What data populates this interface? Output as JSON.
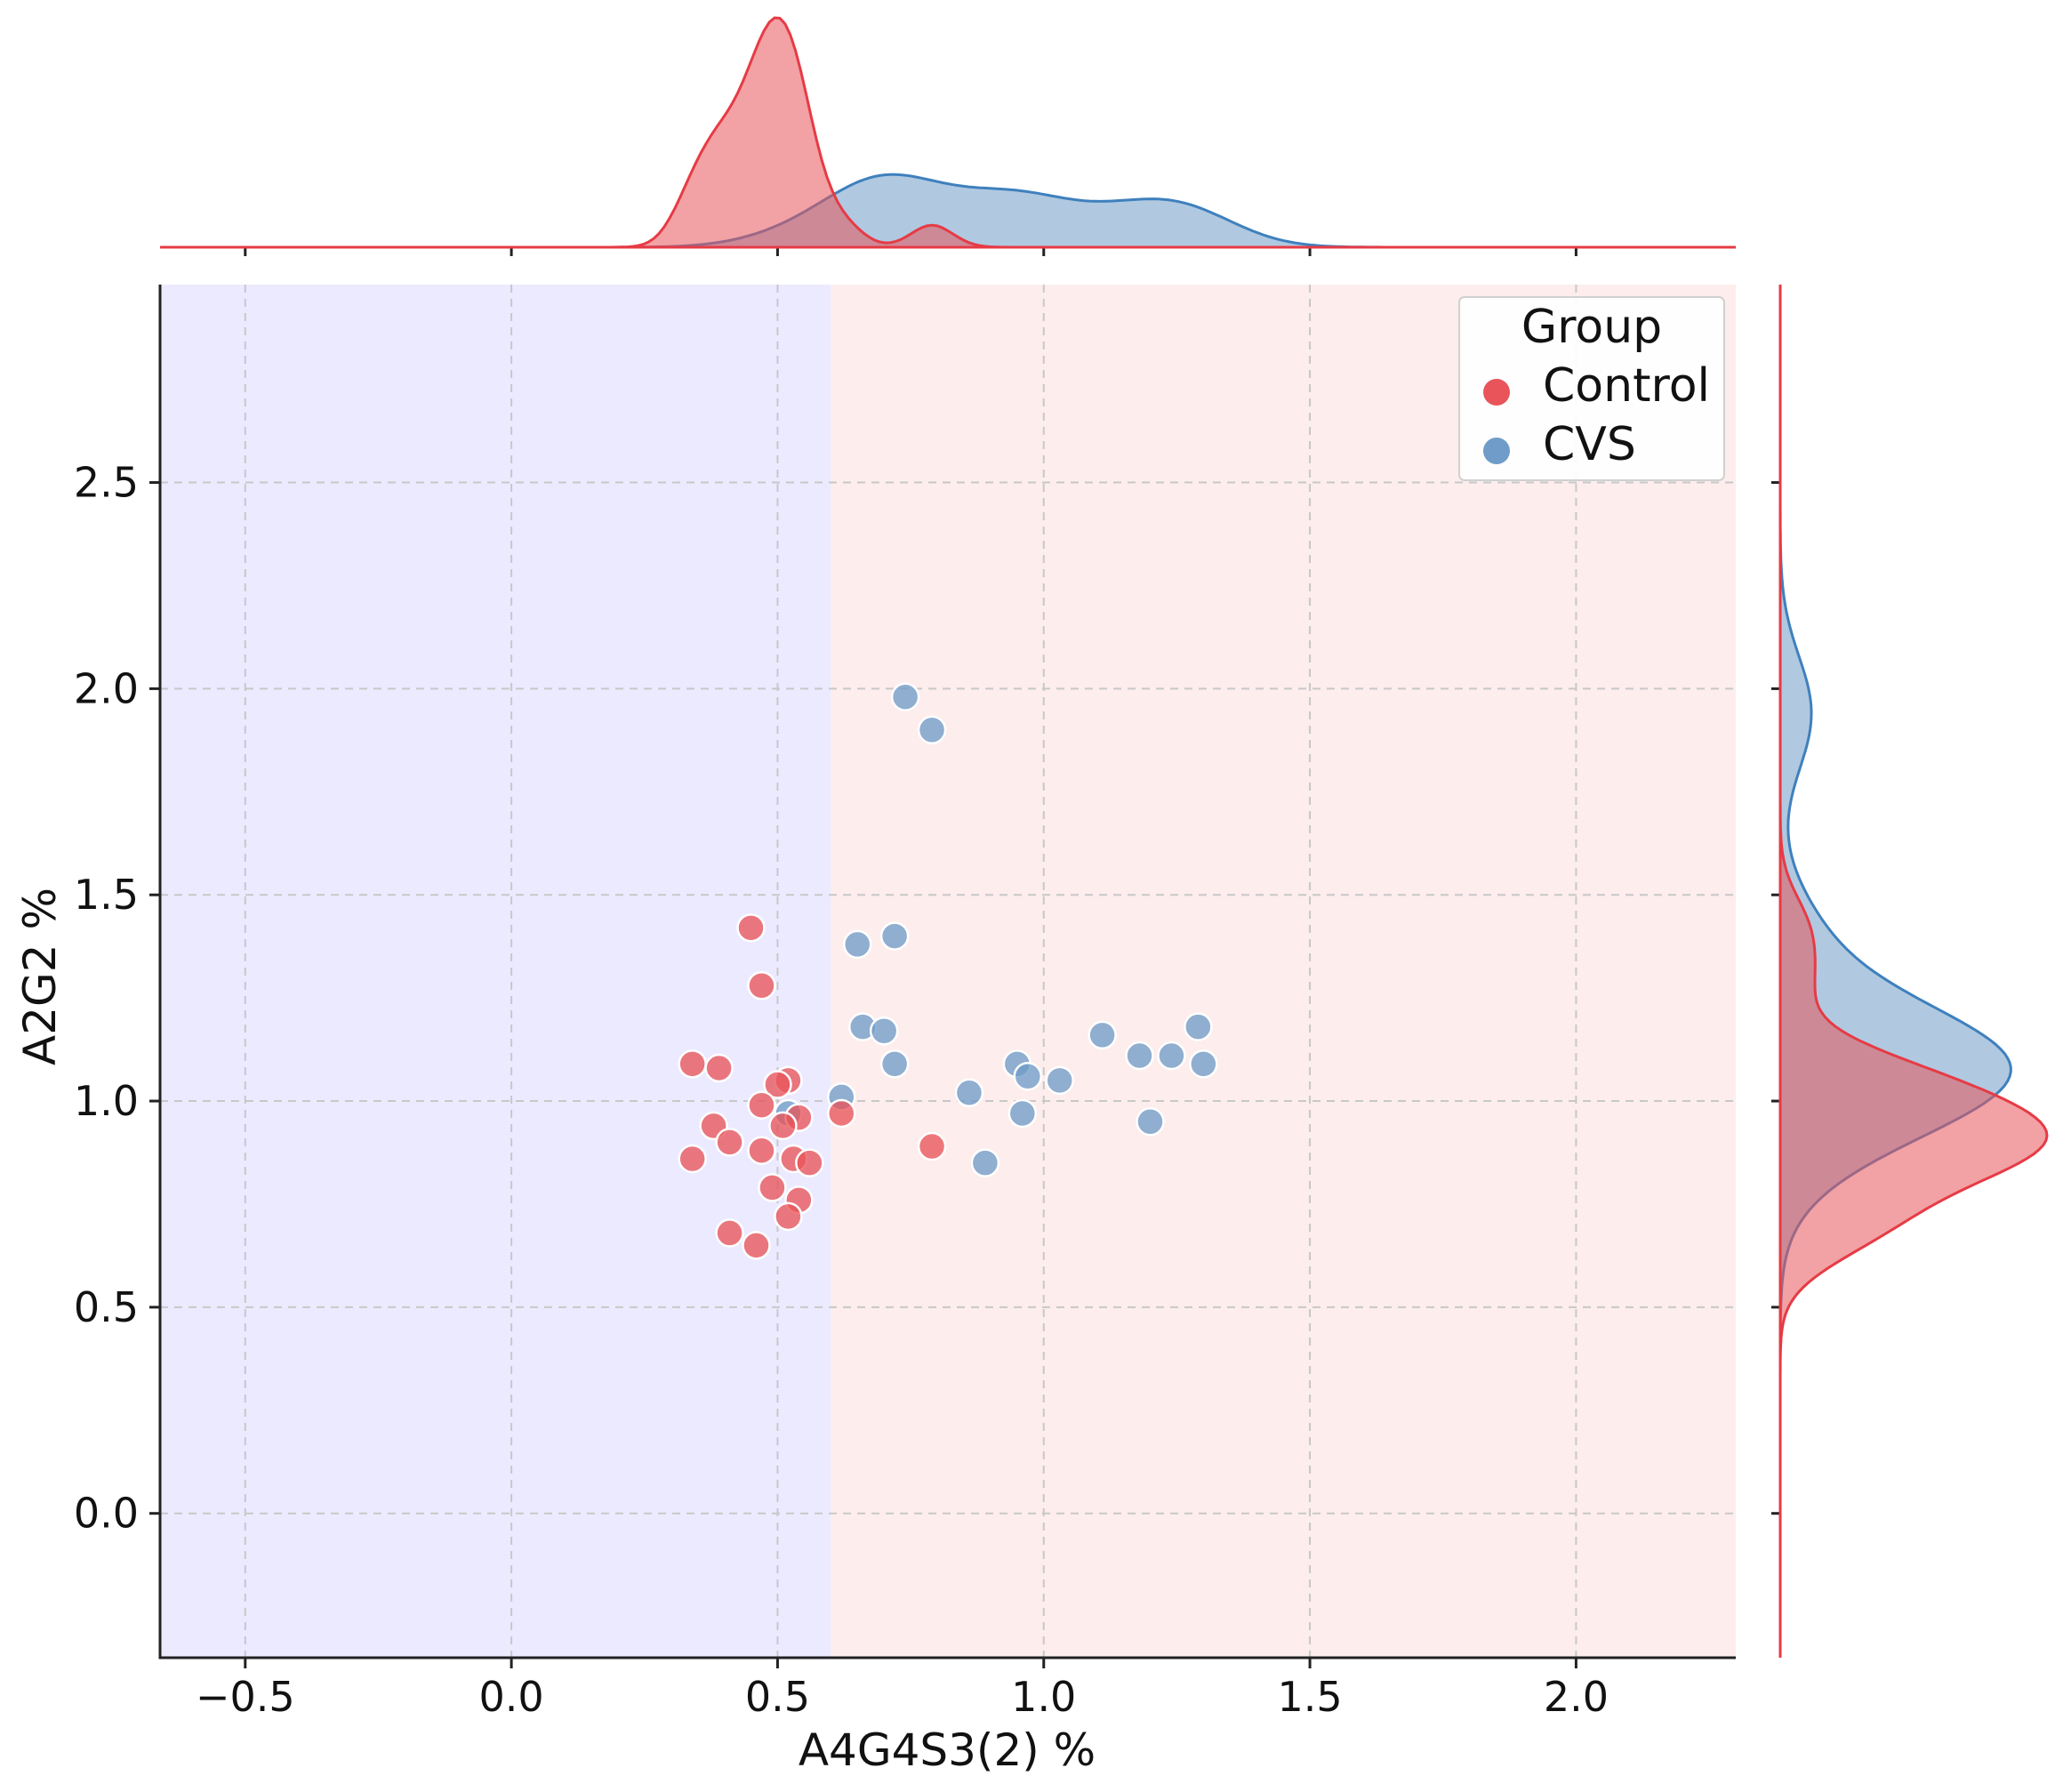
{
  "chart_data": {
    "type": "scatter",
    "title": "",
    "xlabel": "A4G4S3(2) %",
    "ylabel": "A2G2 %",
    "xlim": [
      -0.66,
      2.3
    ],
    "ylim": [
      -0.35,
      2.98
    ],
    "xticks": [
      -0.5,
      0.0,
      0.5,
      1.0,
      1.5,
      2.0
    ],
    "yticks": [
      0.0,
      0.5,
      1.0,
      1.5,
      2.0,
      2.5
    ],
    "xtick_labels": [
      "−0.5",
      "0.0",
      "0.5",
      "1.0",
      "1.5",
      "2.0"
    ],
    "ytick_labels": [
      "0.0",
      "0.5",
      "1.0",
      "1.5",
      "2.0",
      "2.5"
    ],
    "grid": true,
    "background_regions": [
      {
        "x_from": -0.66,
        "x_to": 0.6,
        "color": "#eceaff"
      },
      {
        "x_from": 0.6,
        "x_to": 2.3,
        "color": "#fdeded"
      }
    ],
    "legend": {
      "title": "Group",
      "position": "top-right"
    },
    "series": [
      {
        "name": "Control",
        "color": "#e8545a",
        "kde_color": "#e63b45",
        "points": [
          [
            0.45,
            1.42
          ],
          [
            0.47,
            1.28
          ],
          [
            0.34,
            1.09
          ],
          [
            0.39,
            1.08
          ],
          [
            0.52,
            1.05
          ],
          [
            0.5,
            1.04
          ],
          [
            0.47,
            0.99
          ],
          [
            0.54,
            0.96
          ],
          [
            0.51,
            0.94
          ],
          [
            0.38,
            0.94
          ],
          [
            0.41,
            0.9
          ],
          [
            0.47,
            0.88
          ],
          [
            0.34,
            0.86
          ],
          [
            0.53,
            0.86
          ],
          [
            0.56,
            0.85
          ],
          [
            0.49,
            0.79
          ],
          [
            0.54,
            0.76
          ],
          [
            0.52,
            0.72
          ],
          [
            0.41,
            0.68
          ],
          [
            0.46,
            0.65
          ],
          [
            0.62,
            0.97
          ],
          [
            0.79,
            0.89
          ]
        ]
      },
      {
        "name": "CVS",
        "color": "#6f9cc8",
        "kde_color": "#3f80bd",
        "points": [
          [
            0.74,
            1.98
          ],
          [
            0.79,
            1.9
          ],
          [
            0.65,
            1.38
          ],
          [
            0.72,
            1.4
          ],
          [
            0.66,
            1.18
          ],
          [
            0.7,
            1.17
          ],
          [
            0.72,
            1.09
          ],
          [
            0.62,
            1.01
          ],
          [
            0.52,
            0.97
          ],
          [
            0.86,
            1.02
          ],
          [
            0.95,
            1.09
          ],
          [
            0.97,
            1.06
          ],
          [
            1.03,
            1.05
          ],
          [
            0.96,
            0.97
          ],
          [
            0.89,
            0.85
          ],
          [
            1.11,
            1.16
          ],
          [
            1.18,
            1.11
          ],
          [
            1.24,
            1.11
          ],
          [
            1.29,
            1.18
          ],
          [
            1.3,
            1.09
          ],
          [
            1.2,
            0.95
          ]
        ]
      }
    ],
    "marginals": {
      "top": {
        "variable": "x",
        "type": "kde"
      },
      "right": {
        "variable": "y",
        "type": "kde"
      }
    }
  }
}
